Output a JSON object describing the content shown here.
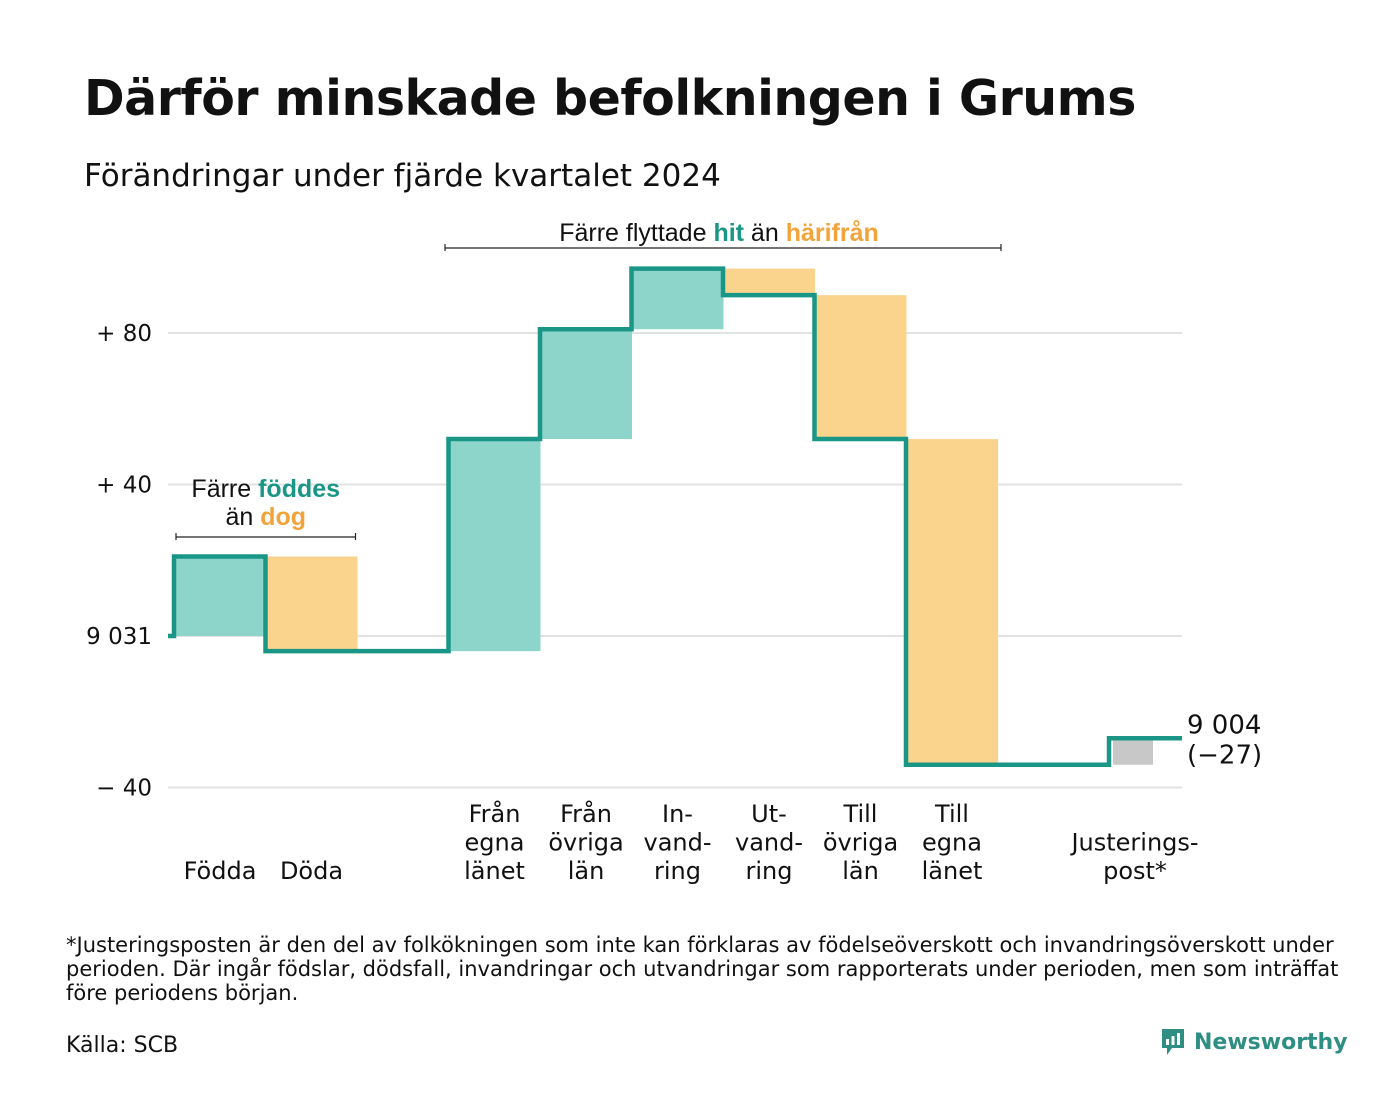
{
  "title": "Därför minskade befolkningen i Grums",
  "subtitle": "Förändringar under fjärde kvartalet 2024",
  "chart_data": {
    "type": "waterfall",
    "start_value": 9031,
    "end_value": 9004,
    "net_change": -27,
    "end_label_value": "9 004",
    "end_label_change": "(−27)",
    "y_ticks": [
      {
        "value": 80,
        "label": "+ 80"
      },
      {
        "value": 40,
        "label": "+ 40"
      },
      {
        "value": 0,
        "label": "9 031"
      },
      {
        "value": -40,
        "label": "− 40"
      }
    ],
    "ylim": [
      -44,
      100
    ],
    "grid": true,
    "colors": {
      "increase": "#8dd5cb",
      "decrease": "#fad48d",
      "adjustment": "#c8c8c8",
      "line": "#1a9686",
      "teal_text": "#1a9686",
      "orange_text": "#f2a43a"
    },
    "steps": [
      {
        "category": "Födda",
        "label_lines": [
          "Födda"
        ],
        "value": 21,
        "slot": 0,
        "kind": "increase"
      },
      {
        "category": "Döda",
        "label_lines": [
          "Döda"
        ],
        "value": -25,
        "slot": 1,
        "kind": "decrease"
      },
      {
        "category": "Från egna länet",
        "label_lines": [
          "Från",
          "egna",
          "länet"
        ],
        "value": 56,
        "slot": 3,
        "kind": "increase"
      },
      {
        "category": "Från övriga län",
        "label_lines": [
          "Från",
          "övriga",
          "län"
        ],
        "value": 29,
        "slot": 4,
        "kind": "increase"
      },
      {
        "category": "Invandring",
        "label_lines": [
          "In-",
          "vand-",
          "ring"
        ],
        "value": 16,
        "slot": 5,
        "kind": "increase"
      },
      {
        "category": "Utvandring",
        "label_lines": [
          "Ut-",
          "vand-",
          "ring"
        ],
        "value": -7,
        "slot": 6,
        "kind": "decrease"
      },
      {
        "category": "Till övriga län",
        "label_lines": [
          "Till",
          "övriga",
          "län"
        ],
        "value": -38,
        "slot": 7,
        "kind": "decrease"
      },
      {
        "category": "Till egna länet",
        "label_lines": [
          "Till",
          "egna",
          "länet"
        ],
        "value": -86,
        "slot": 8,
        "kind": "decrease"
      },
      {
        "category": "Justeringspost*",
        "label_lines": [
          "Justerings-",
          "post*"
        ],
        "value": 7,
        "slot": 10,
        "kind": "adjustment"
      }
    ],
    "annotations": [
      {
        "id": "births",
        "from_slot": 0,
        "to_slot": 1,
        "line1_prefix": "Färre ",
        "line1_highlight": "föddes",
        "line2_prefix": "än ",
        "line2_highlight": "dog"
      },
      {
        "id": "migration",
        "from_slot": 3,
        "to_slot": 8,
        "prefix": "Färre flyttade ",
        "highlight1": "hit",
        "middle": " än ",
        "highlight2": "härifrån"
      }
    ]
  },
  "footnote": "*Justeringsposten är den del av folkökningen som inte kan förklaras av födelseöverskott och invandringsöverskott under perioden. Där ingår födslar, dödsfall, invandringar och utvandringar som rapporterats under perioden, men som inträffat före periodens början.",
  "source": "Källa: SCB",
  "logo": {
    "text": "Newsworthy",
    "icon": "newsworthy-chart-icon"
  }
}
